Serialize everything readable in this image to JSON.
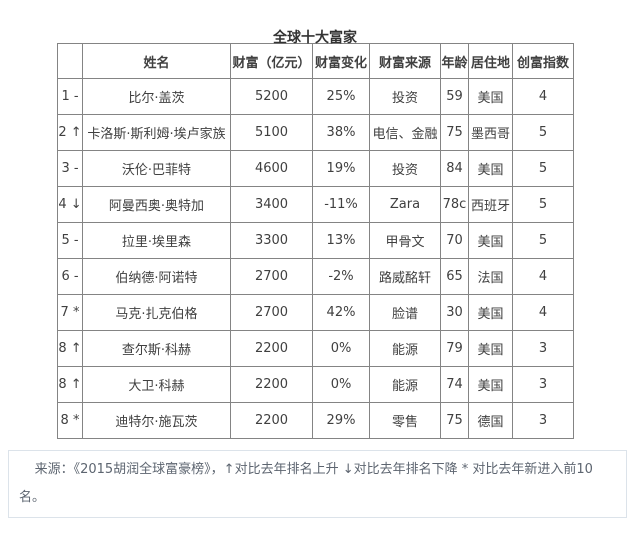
{
  "title": "全球十大富家",
  "chart_data": {
    "type": "table",
    "title": "全球十大富家",
    "columns": [
      "",
      "姓名",
      "财富（亿元）",
      "财富变化",
      "财富来源",
      "年龄",
      "居住地",
      "创富指数"
    ],
    "column_keys": [
      "rank",
      "name",
      "wealth",
      "change",
      "source",
      "age",
      "residence",
      "index"
    ],
    "rows": [
      [
        "1 -",
        "比尔·盖茨",
        "5200",
        "25%",
        "投资",
        "59",
        "美国",
        "4"
      ],
      [
        "2 ↑",
        "卡洛斯·斯利姆·埃卢家族",
        "5100",
        "38%",
        "电信、金融",
        "75",
        "墨西哥",
        "5"
      ],
      [
        "3 -",
        "沃伦·巴菲特",
        "4600",
        "19%",
        "投资",
        "84",
        "美国",
        "5"
      ],
      [
        "4 ↓",
        "阿曼西奥·奥特加",
        "3400",
        "-11%",
        "Zara",
        "78c",
        "西班牙",
        "5"
      ],
      [
        "5 -",
        "拉里·埃里森",
        "3300",
        "13%",
        "甲骨文",
        "70",
        "美国",
        "5"
      ],
      [
        "6 -",
        "伯纳德·阿诺特",
        "2700",
        "-2%",
        "路威酩轩",
        "65",
        "法国",
        "4"
      ],
      [
        "7 *",
        "马克·扎克伯格",
        "2700",
        "42%",
        "脸谱",
        "30",
        "美国",
        "4"
      ],
      [
        "8 ↑",
        "查尔斯·科赫",
        "2200",
        "0%",
        "能源",
        "79",
        "美国",
        "3"
      ],
      [
        "8 ↑",
        "大卫·科赫",
        "2200",
        "0%",
        "能源",
        "74",
        "美国",
        "3"
      ],
      [
        "8 *",
        "迪特尔·施瓦茨",
        "2200",
        "29%",
        "零售",
        "75",
        "德国",
        "3"
      ]
    ]
  },
  "footer": {
    "note": "来源：《2015胡润全球富豪榜》，↑对比去年排名上升 ↓对比去年排名下降 * 对比去年新进入前10名。"
  }
}
